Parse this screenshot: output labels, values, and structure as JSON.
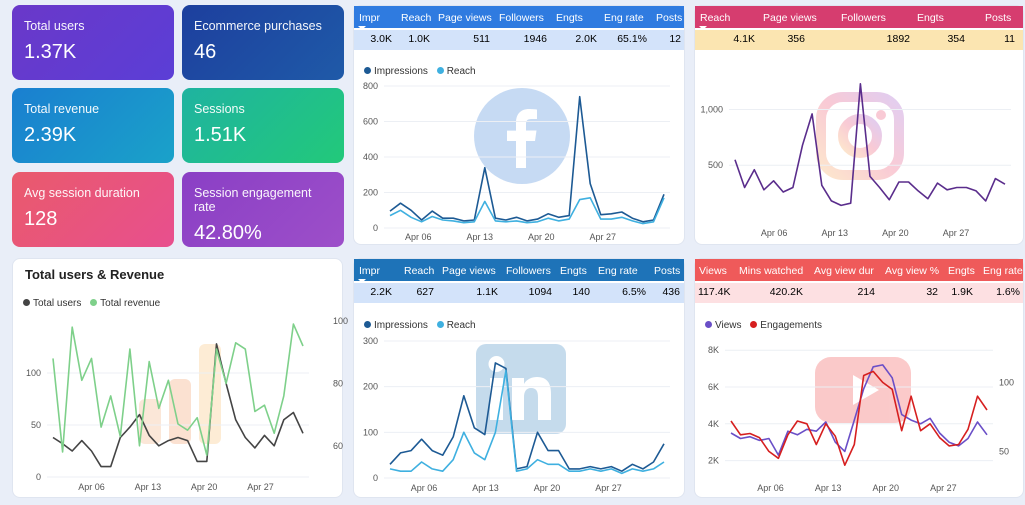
{
  "kpis": {
    "total_users": {
      "label": "Total users",
      "value": "1.37K"
    },
    "ecommerce_purchases": {
      "label": "Ecommerce purchases",
      "value": "46"
    },
    "total_revenue": {
      "label": "Total revenue",
      "value": "2.39K"
    },
    "sessions": {
      "label": "Sessions",
      "value": "1.51K"
    },
    "avg_session_duration": {
      "label": "Avg session duration",
      "value": "128"
    },
    "engagement_rate": {
      "label": "Session engagement rate",
      "value": "42.80%"
    }
  },
  "facebook": {
    "headers": [
      "Impr",
      "Reach",
      "Page views",
      "Followers",
      "Engts",
      "Eng rate",
      "Posts"
    ],
    "values": [
      "3.0K",
      "1.0K",
      "511",
      "1946",
      "2.0K",
      "65.1%",
      "12"
    ],
    "legend": [
      "Impressions",
      "Reach"
    ]
  },
  "instagram": {
    "headers": [
      "Reach",
      "Page views",
      "Followers",
      "Engts",
      "Posts"
    ],
    "values": [
      "4.1K",
      "356",
      "1892",
      "354",
      "11"
    ]
  },
  "users_revenue": {
    "title": "Total users & Revenue",
    "legend": [
      "Total users",
      "Total revenue"
    ]
  },
  "linkedin": {
    "headers": [
      "Impr",
      "Reach",
      "Page views",
      "Followers",
      "Engts",
      "Eng rate",
      "Posts"
    ],
    "values": [
      "2.2K",
      "627",
      "1.1K",
      "1094",
      "140",
      "6.5%",
      "436"
    ],
    "legend": [
      "Impressions",
      "Reach"
    ]
  },
  "youtube": {
    "headers": [
      "Views",
      "Mins watched",
      "Avg view dur",
      "Avg view %",
      "Engts",
      "Eng rate"
    ],
    "values": [
      "117.4K",
      "420.2K",
      "214",
      "32",
      "1.9K",
      "1.6%"
    ],
    "legend": [
      "Views",
      "Engagements"
    ]
  },
  "colors": {
    "facebook": "#1f6fd1",
    "instagram": "#d63d6f",
    "linkedin": "#1e73b8",
    "youtube": "#ef5a5a",
    "impressions": "#1d5a94",
    "reach": "#3fb0e0",
    "users": "#444444",
    "revenue": "#7ed08a",
    "ig_line": "#5a2d8c",
    "views": "#6a4fc7",
    "engagements": "#d61f1f"
  },
  "chart_data": [
    {
      "type": "line",
      "id": "facebook",
      "x_ticks": [
        "Apr 06",
        "Apr 13",
        "Apr 20",
        "Apr 27"
      ],
      "ylim": [
        0,
        800
      ],
      "y_ticks": [
        0,
        200,
        400,
        600,
        800
      ],
      "series": [
        {
          "name": "Impressions",
          "values": [
            95,
            140,
            100,
            45,
            95,
            55,
            55,
            40,
            45,
            340,
            55,
            45,
            60,
            40,
            50,
            80,
            60,
            70,
            740,
            250,
            75,
            80,
            90,
            55,
            35,
            45,
            190
          ]
        },
        {
          "name": "Reach",
          "values": [
            70,
            100,
            60,
            35,
            65,
            45,
            40,
            30,
            35,
            150,
            40,
            35,
            40,
            30,
            35,
            55,
            40,
            50,
            160,
            170,
            50,
            50,
            60,
            40,
            25,
            35,
            170
          ]
        }
      ]
    },
    {
      "type": "line",
      "id": "instagram",
      "x_ticks": [
        "Apr 06",
        "Apr 13",
        "Apr 20",
        "Apr 27"
      ],
      "ylim": [
        0,
        1300
      ],
      "y_ticks": [
        500,
        1000
      ],
      "y_tick_labels": [
        "500",
        "1,000"
      ],
      "series": [
        {
          "name": "Reach",
          "values": [
            550,
            300,
            460,
            280,
            360,
            260,
            300,
            680,
            960,
            320,
            180,
            140,
            160,
            1230,
            400,
            300,
            190,
            350,
            350,
            270,
            200,
            340,
            280,
            300,
            300,
            270,
            180,
            380,
            330
          ]
        }
      ]
    },
    {
      "type": "line",
      "id": "users_revenue",
      "x_ticks": [
        "Apr 06",
        "Apr 13",
        "Apr 20",
        "Apr 27"
      ],
      "ylim_left": [
        0,
        150
      ],
      "ylim_right": [
        50,
        100
      ],
      "y_ticks_left": [
        0,
        50,
        100
      ],
      "y_ticks_right": [
        60,
        80,
        100
      ],
      "series": [
        {
          "name": "Total users",
          "axis": "left",
          "values": [
            38,
            32,
            25,
            35,
            25,
            10,
            10,
            38,
            48,
            60,
            40,
            30,
            35,
            38,
            35,
            15,
            15,
            128,
            90,
            55,
            38,
            28,
            40,
            30,
            55,
            62,
            42
          ]
        },
        {
          "name": "Total revenue",
          "axis": "right",
          "values": [
            88,
            58,
            98,
            81,
            88,
            66,
            76,
            63,
            91,
            60,
            87,
            72,
            81,
            67,
            65,
            69,
            57,
            91,
            80,
            93,
            91,
            71,
            73,
            64,
            76,
            99,
            92
          ]
        }
      ]
    },
    {
      "type": "line",
      "id": "linkedin",
      "x_ticks": [
        "Apr 06",
        "Apr 13",
        "Apr 20",
        "Apr 27"
      ],
      "ylim": [
        0,
        300
      ],
      "y_ticks": [
        0,
        100,
        200,
        300
      ],
      "series": [
        {
          "name": "Impressions",
          "values": [
            30,
            55,
            60,
            85,
            60,
            50,
            90,
            180,
            110,
            95,
            252,
            240,
            20,
            25,
            100,
            60,
            60,
            20,
            20,
            25,
            20,
            25,
            15,
            30,
            20,
            35,
            75
          ]
        },
        {
          "name": "Reach",
          "values": [
            20,
            15,
            15,
            35,
            20,
            15,
            40,
            100,
            55,
            40,
            100,
            235,
            15,
            20,
            40,
            30,
            30,
            15,
            15,
            20,
            15,
            20,
            10,
            20,
            15,
            20,
            35
          ]
        }
      ]
    },
    {
      "type": "line",
      "id": "youtube",
      "x_ticks": [
        "Apr 06",
        "Apr 13",
        "Apr 20",
        "Apr 27"
      ],
      "ylim_left": [
        1000,
        8500
      ],
      "ylim_right": [
        30,
        130
      ],
      "y_ticks_left": [
        2000,
        4000,
        6000,
        8000
      ],
      "y_tick_labels_left": [
        "2K",
        "4K",
        "6K",
        "8K"
      ],
      "y_ticks_right": [
        50,
        100
      ],
      "series": [
        {
          "name": "Views",
          "axis": "left",
          "values": [
            3500,
            3200,
            3300,
            3100,
            3200,
            2300,
            3600,
            3400,
            3700,
            3600,
            4100,
            3000,
            2500,
            4200,
            5900,
            7100,
            7200,
            6500,
            4500,
            4200,
            4000,
            4300,
            3500,
            3000,
            2800,
            3200,
            4100,
            3400
          ]
        },
        {
          "name": "Engagements",
          "axis": "right",
          "values": [
            72,
            62,
            63,
            60,
            50,
            45,
            62,
            72,
            70,
            55,
            70,
            61,
            40,
            55,
            105,
            108,
            100,
            95,
            65,
            90,
            65,
            70,
            60,
            54,
            55,
            66,
            90,
            80
          ]
        }
      ]
    }
  ]
}
